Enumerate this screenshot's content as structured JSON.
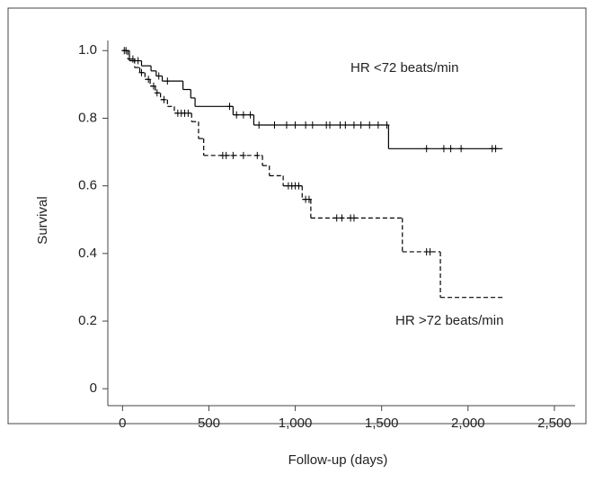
{
  "chart_data": {
    "type": "survival",
    "xlabel": "Follow-up (days)",
    "ylabel": "Survival",
    "xlim": [
      -85,
      2620
    ],
    "ylim": [
      -0.05,
      1.03
    ],
    "xticks": [
      0,
      500,
      {
        "value": 1000,
        "label": "1,000"
      },
      {
        "value": 1500,
        "label": "1,500"
      },
      {
        "value": 2000,
        "label": "2,000"
      },
      {
        "value": 2500,
        "label": "2,500"
      }
    ],
    "yticks": [
      0,
      0.2,
      0.4,
      0.6,
      0.8,
      {
        "value": 1.0,
        "label": "1.0"
      }
    ],
    "series": [
      {
        "name": "HR <72 beats/min",
        "color": "#000000",
        "dash": false,
        "x": [
          0,
          40,
          110,
          165,
          195,
          230,
          350,
          395,
          420,
          640,
          760,
          1540,
          2200
        ],
        "values": [
          1.0,
          0.97,
          0.955,
          0.94,
          0.925,
          0.91,
          0.885,
          0.86,
          0.835,
          0.81,
          0.78,
          0.71,
          0.71
        ],
        "censored": {
          "x": [
            20,
            90,
            210,
            260,
            620,
            660,
            700,
            740,
            790,
            880,
            950,
            1000,
            1060,
            1100,
            1180,
            1200,
            1260,
            1290,
            1340,
            1380,
            1430,
            1480,
            1530,
            1760,
            1860,
            1900,
            1960,
            2140,
            2160
          ],
          "values": [
            1.0,
            0.97,
            0.925,
            0.91,
            0.835,
            0.81,
            0.81,
            0.81,
            0.78,
            0.78,
            0.78,
            0.78,
            0.78,
            0.78,
            0.78,
            0.78,
            0.78,
            0.78,
            0.78,
            0.78,
            0.78,
            0.78,
            0.78,
            0.71,
            0.71,
            0.71,
            0.71,
            0.71,
            0.71
          ]
        }
      },
      {
        "name": "HR >72 beats/min",
        "color": "#000000",
        "dash": true,
        "x": [
          0,
          30,
          70,
          100,
          130,
          160,
          190,
          220,
          260,
          300,
          400,
          440,
          470,
          810,
          850,
          930,
          1040,
          1090,
          1620,
          1840,
          2200
        ],
        "values": [
          1.0,
          0.975,
          0.95,
          0.935,
          0.915,
          0.895,
          0.875,
          0.855,
          0.835,
          0.815,
          0.79,
          0.74,
          0.69,
          0.66,
          0.63,
          0.6,
          0.56,
          0.505,
          0.405,
          0.27,
          0.27
        ],
        "censored": {
          "x": [
            10,
            60,
            110,
            150,
            180,
            200,
            240,
            320,
            340,
            360,
            380,
            580,
            600,
            640,
            700,
            780,
            960,
            980,
            1000,
            1020,
            1060,
            1080,
            1240,
            1270,
            1320,
            1340,
            1760,
            1780
          ],
          "values": [
            1.0,
            0.975,
            0.935,
            0.915,
            0.895,
            0.875,
            0.855,
            0.815,
            0.815,
            0.815,
            0.815,
            0.69,
            0.69,
            0.69,
            0.69,
            0.69,
            0.6,
            0.6,
            0.6,
            0.6,
            0.56,
            0.56,
            0.505,
            0.505,
            0.505,
            0.505,
            0.405,
            0.405
          ]
        }
      }
    ]
  }
}
